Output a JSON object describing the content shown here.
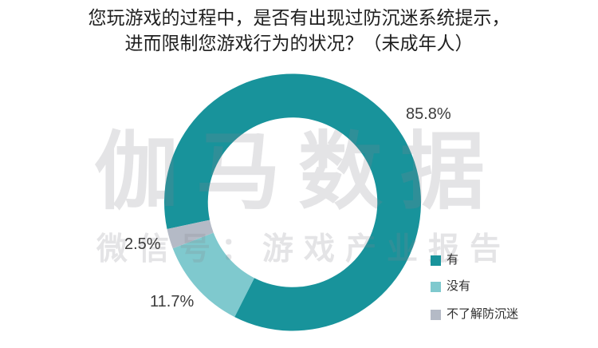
{
  "title": {
    "line1": "您玩游戏的过程中，是否有出现过防沉迷系统提示，",
    "line2": "进而限制您游戏行为的状况？（未成年人）"
  },
  "watermark": {
    "main": "伽马数据",
    "sub": "微信号：游戏产业报告"
  },
  "chart_data": {
    "type": "pie",
    "subtype": "donut",
    "title": "您玩游戏的过程中，是否有出现过防沉迷系统提示，进而限制您游戏行为的状况？（未成年人）",
    "rotation_deg_clockwise_from_top": 258,
    "inner_radius_ratio": 0.66,
    "legend_position": "bottom-right",
    "background_color": "#ffffff",
    "slices": [
      {
        "name": "有",
        "value": 85.8,
        "label": "85.8%",
        "color": "#18939b"
      },
      {
        "name": "没有",
        "value": 11.7,
        "label": "11.7%",
        "color": "#7fc9ce"
      },
      {
        "name": "不了解防沉迷",
        "value": 2.5,
        "label": "2.5%",
        "color": "#b4bac6"
      }
    ]
  }
}
